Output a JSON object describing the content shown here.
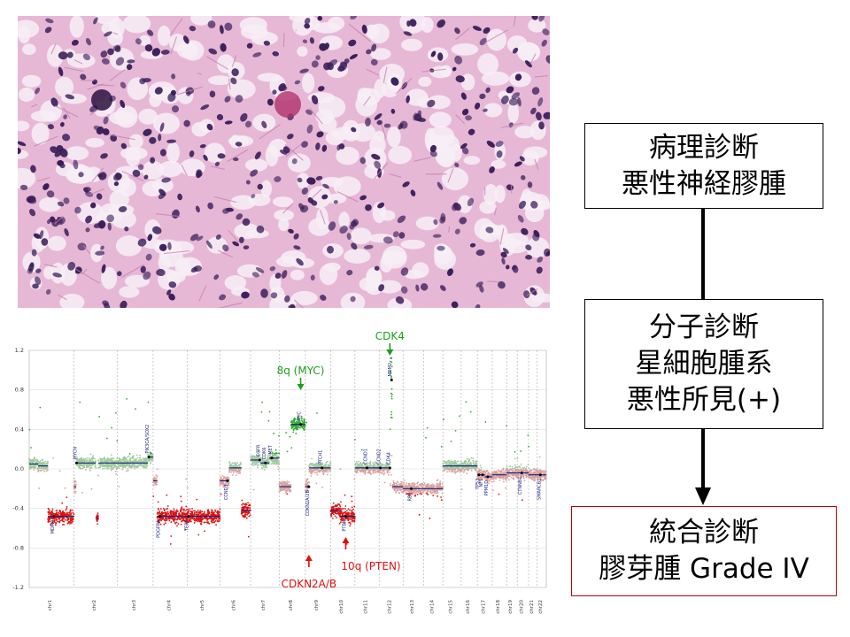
{
  "flow": {
    "pathology": {
      "line1": "病理診断",
      "line2": "悪性神経膠腫"
    },
    "molecular": {
      "line1": "分子診断",
      "line2": "星細胞腫系",
      "line3": "悪性所見(+)"
    },
    "integrated": {
      "line1": "統合診断",
      "line2": "膠芽腫 Grade IV"
    }
  },
  "colors": {
    "gain": "#33aa33",
    "loss": "#dd1111",
    "neutral_gain": "#9fc99f",
    "neutral_loss": "#d8a0a0",
    "segment": "#1a237e",
    "annotation_gain": "#1e9e1e",
    "annotation_loss": "#e01010",
    "integrated_border": "#c00000",
    "tissue_bg": "#e6b8d6",
    "nuclei": "#3a1d5a"
  },
  "chart_data": {
    "type": "scatter",
    "ylim": [
      -1.2,
      1.2
    ],
    "yticks": [
      "1.2",
      "0.8",
      "0.4",
      "0.0",
      "-0.4",
      "-0.8",
      "-1.2"
    ],
    "yvalues": [
      1.2,
      0.8,
      0.4,
      0.0,
      -0.4,
      -0.8,
      -1.2
    ],
    "chromosomes": [
      "chr1",
      "chr2",
      "chr3",
      "chr4",
      "chr5",
      "chr6",
      "chr7",
      "chr8",
      "chr9",
      "chr10",
      "chr11",
      "chr12",
      "chr13",
      "chr14",
      "chr15",
      "chr16",
      "chr17",
      "chr18",
      "chr19",
      "chr20",
      "chr21",
      "chr22"
    ],
    "chrom_sizes": [
      249,
      243,
      198,
      191,
      181,
      171,
      159,
      146,
      141,
      135,
      135,
      133,
      115,
      107,
      102,
      90,
      83,
      80,
      59,
      63,
      48,
      51
    ],
    "segments": [
      {
        "chr": 0,
        "s": 0,
        "e": 0.2,
        "v": 0.05
      },
      {
        "chr": 0,
        "s": 0.2,
        "e": 0.42,
        "v": 0.03
      },
      {
        "chr": 0,
        "s": 0.42,
        "e": 1,
        "v": -0.48
      },
      {
        "chr": 1,
        "s": 0,
        "e": 0.05,
        "v": -0.18
      },
      {
        "chr": 1,
        "s": 0.05,
        "e": 0.5,
        "v": 0.06
      },
      {
        "chr": 1,
        "s": 0.5,
        "e": 0.56,
        "v": -0.5
      },
      {
        "chr": 1,
        "s": 0.56,
        "e": 1,
        "v": 0.06
      },
      {
        "chr": 2,
        "s": 0,
        "e": 0.85,
        "v": 0.06
      },
      {
        "chr": 2,
        "s": 0.85,
        "e": 1,
        "v": 0.12
      },
      {
        "chr": 3,
        "s": 0,
        "e": 0.12,
        "v": -0.12
      },
      {
        "chr": 3,
        "s": 0.12,
        "e": 1,
        "v": -0.48
      },
      {
        "chr": 4,
        "s": 0,
        "e": 1,
        "v": -0.48
      },
      {
        "chr": 5,
        "s": 0,
        "e": 0.3,
        "v": -0.12
      },
      {
        "chr": 5,
        "s": 0.3,
        "e": 0.7,
        "v": 0.01
      },
      {
        "chr": 5,
        "s": 0.7,
        "e": 1,
        "v": -0.42
      },
      {
        "chr": 6,
        "s": 0,
        "e": 0.35,
        "v": 0.09
      },
      {
        "chr": 6,
        "s": 0.35,
        "e": 0.65,
        "v": 0.06
      },
      {
        "chr": 6,
        "s": 0.65,
        "e": 1,
        "v": 0.11
      },
      {
        "chr": 7,
        "s": 0,
        "e": 0.45,
        "v": -0.18
      },
      {
        "chr": 7,
        "s": 0.45,
        "e": 1,
        "v": 0.45
      },
      {
        "chr": 8,
        "s": 0,
        "e": 0.15,
        "v": -0.18
      },
      {
        "chr": 8,
        "s": 0.15,
        "e": 0.4,
        "v": 0.01
      },
      {
        "chr": 8,
        "s": 0.4,
        "e": 1,
        "v": 0.01
      },
      {
        "chr": 9,
        "s": 0,
        "e": 0.4,
        "v": -0.42
      },
      {
        "chr": 9,
        "s": 0.4,
        "e": 1,
        "v": -0.48
      },
      {
        "chr": 10,
        "s": 0,
        "e": 1,
        "v": 0.01
      },
      {
        "chr": 11,
        "s": 0,
        "e": 0.45,
        "v": 0.01
      },
      {
        "chr": 11,
        "s": 0.45,
        "e": 0.55,
        "v": 1.12
      },
      {
        "chr": 11,
        "s": 0.55,
        "e": 1,
        "v": -0.18
      },
      {
        "chr": 12,
        "s": 0,
        "e": 1,
        "v": -0.2
      },
      {
        "chr": 13,
        "s": 0,
        "e": 1,
        "v": -0.2
      },
      {
        "chr": 14,
        "s": 0,
        "e": 1,
        "v": 0.03
      },
      {
        "chr": 15,
        "s": 0,
        "e": 1,
        "v": 0.03
      },
      {
        "chr": 16,
        "s": 0,
        "e": 0.5,
        "v": -0.06
      },
      {
        "chr": 16,
        "s": 0.5,
        "e": 1,
        "v": -0.08
      },
      {
        "chr": 17,
        "s": 0,
        "e": 1,
        "v": -0.06
      },
      {
        "chr": 18,
        "s": 0,
        "e": 1,
        "v": -0.04
      },
      {
        "chr": 19,
        "s": 0,
        "e": 1,
        "v": -0.04
      },
      {
        "chr": 20,
        "s": 0,
        "e": 1,
        "v": -0.06
      },
      {
        "chr": 21,
        "s": 0,
        "e": 1,
        "v": -0.06
      }
    ],
    "genes": [
      {
        "label": "MDM4",
        "chr": 0,
        "pos": 0.55
      },
      {
        "label": "MYCN",
        "chr": 1,
        "pos": 0.06
      },
      {
        "label": "PIK3CA/SOX2",
        "chr": 2,
        "pos": 0.88
      },
      {
        "label": "PDGFRA",
        "chr": 3,
        "pos": 0.2
      },
      {
        "label": "TERT",
        "chr": 4,
        "pos": 0.02
      },
      {
        "label": "CCND3",
        "chr": 5,
        "pos": 0.25
      },
      {
        "label": "EGFR",
        "chr": 6,
        "pos": 0.32
      },
      {
        "label": "CDK6",
        "chr": 6,
        "pos": 0.52
      },
      {
        "label": "MET",
        "chr": 6,
        "pos": 0.74
      },
      {
        "label": "MYC",
        "chr": 7,
        "pos": 0.82
      },
      {
        "label": "CDKN2A/2B",
        "chr": 8,
        "pos": 0.14
      },
      {
        "label": "PTCH1",
        "chr": 8,
        "pos": 0.66
      },
      {
        "label": "PTEN",
        "chr": 9,
        "pos": 0.62
      },
      {
        "label": "CCND1",
        "chr": 10,
        "pos": 0.5
      },
      {
        "label": "CCND2",
        "chr": 11,
        "pos": 0.05
      },
      {
        "label": "CDK4",
        "chr": 11,
        "pos": 0.45
      },
      {
        "label": "MDM2",
        "chr": 11,
        "pos": 0.52
      },
      {
        "label": "RB1",
        "chr": 12,
        "pos": 0.4
      },
      {
        "label": "TP53",
        "chr": 16,
        "pos": 0.1
      },
      {
        "label": "NF1",
        "chr": 16,
        "pos": 0.35
      },
      {
        "label": "PPM1D",
        "chr": 16,
        "pos": 0.7
      },
      {
        "label": "CTNNB1",
        "chr": 19,
        "pos": 0.4
      },
      {
        "label": "SMARCB1",
        "chr": 21,
        "pos": 0.35
      }
    ],
    "annotations": [
      {
        "text": "CDK4",
        "color": "green",
        "dir": "down",
        "chr": 11,
        "pos": 0.45
      },
      {
        "text": "8q (MYC)",
        "color": "green",
        "dir": "down",
        "chr": 7,
        "pos": 0.82
      },
      {
        "text": "CDKN2A/B",
        "color": "red",
        "dir": "up",
        "chr": 8,
        "pos": 0.14
      },
      {
        "text": "10q (PTEN)",
        "color": "red",
        "dir": "up",
        "chr": 9,
        "pos": 0.62
      }
    ]
  }
}
